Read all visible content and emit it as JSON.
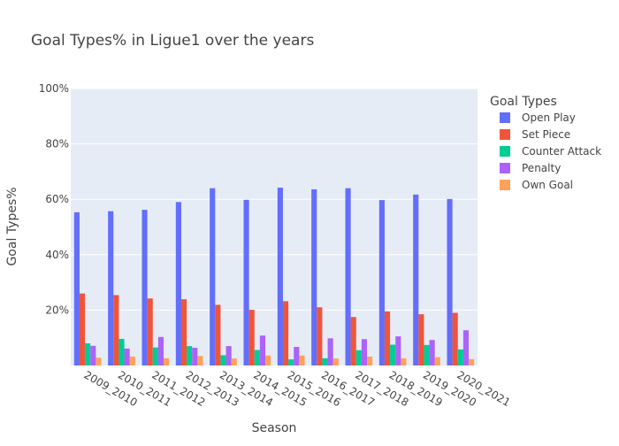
{
  "chart_data": {
    "type": "bar",
    "title": "Goal Types% in Ligue1 over the years",
    "xlabel": "Season",
    "ylabel": "Goal Types%",
    "ylim": [
      0,
      100
    ],
    "y_ticks": [
      20,
      40,
      60,
      80,
      100
    ],
    "y_tick_suffix": "%",
    "grid": true,
    "legend_title": "Goal Types",
    "legend_position": "right",
    "categories": [
      "2009_2010",
      "2010_2011",
      "2011_2012",
      "2012_2013",
      "2013_2014",
      "2014_2015",
      "2015_2016",
      "2016_2017",
      "2017_2018",
      "2018_2019",
      "2019_2020",
      "2020_2021"
    ],
    "series": [
      {
        "name": "Open Play",
        "color": "#636efa",
        "values": [
          55.3,
          55.7,
          56.2,
          59.0,
          64.0,
          59.8,
          64.2,
          63.6,
          64.0,
          59.7,
          61.7,
          60.1
        ]
      },
      {
        "name": "Set Piece",
        "color": "#ef553b",
        "values": [
          26.0,
          25.4,
          24.2,
          23.9,
          21.9,
          20.1,
          23.2,
          21.0,
          17.5,
          19.5,
          18.5,
          19.0
        ]
      },
      {
        "name": "Counter Attack",
        "color": "#00cc96",
        "values": [
          8.0,
          9.6,
          6.5,
          7.0,
          3.7,
          5.6,
          2.2,
          2.6,
          5.5,
          7.5,
          7.4,
          5.8
        ]
      },
      {
        "name": "Penalty",
        "color": "#ab63fa",
        "values": [
          7.1,
          6.1,
          10.3,
          6.4,
          7.0,
          10.8,
          6.7,
          9.8,
          9.5,
          10.5,
          9.2,
          12.7
        ]
      },
      {
        "name": "Own Goal",
        "color": "#ffa15a",
        "values": [
          2.8,
          3.2,
          2.6,
          3.4,
          2.5,
          3.6,
          3.6,
          2.5,
          3.2,
          2.6,
          3.0,
          2.3
        ]
      }
    ]
  }
}
